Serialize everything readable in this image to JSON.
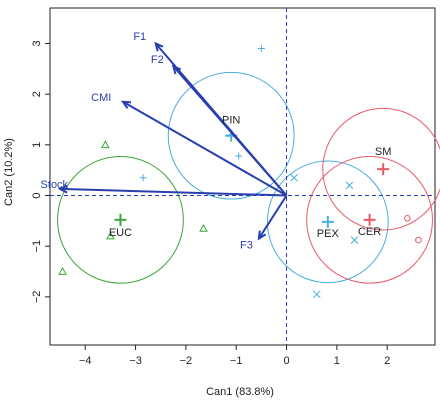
{
  "chart_data": {
    "type": "scatter",
    "title": "",
    "xlabel": "Can1 (83.8%)",
    "ylabel": "Can2 (10.2%)",
    "xlim": [
      -4.7,
      2.95
    ],
    "ylim": [
      -2.95,
      3.7
    ],
    "xticks": [
      -4,
      -3,
      -2,
      -1,
      0,
      1,
      2
    ],
    "yticks": [
      -2,
      -1,
      0,
      1,
      2,
      3
    ],
    "grid": false,
    "reference_lines": {
      "x": 0,
      "y": 0,
      "style": "dashed",
      "color": "#2a3faf"
    },
    "groups": [
      {
        "name": "EUC",
        "color": "#3aa63a",
        "marker": "triangle",
        "centroid": [
          -3.3,
          -0.48
        ],
        "radius": 1.25,
        "points": [
          [
            -3.6,
            1.0
          ],
          [
            -3.5,
            -0.8
          ],
          [
            -4.45,
            -1.5
          ],
          [
            -1.65,
            -0.65
          ]
        ]
      },
      {
        "name": "PIN",
        "color": "#4aaee0",
        "marker": "plus",
        "centroid": [
          -1.1,
          1.18
        ],
        "radius": 1.25,
        "points": [
          [
            -0.5,
            2.9
          ],
          [
            -0.95,
            0.78
          ],
          [
            -2.85,
            0.35
          ],
          [
            -1.1,
            1.2
          ]
        ]
      },
      {
        "name": "PEX",
        "color": "#4aaee0",
        "marker": "x",
        "centroid": [
          0.82,
          -0.52
        ],
        "radius": 1.2,
        "points": [
          [
            0.6,
            -1.95
          ],
          [
            1.35,
            -0.88
          ],
          [
            1.25,
            0.2
          ],
          [
            0.15,
            0.35
          ]
        ]
      },
      {
        "name": "CER",
        "color": "#e85a6a",
        "marker": "x",
        "centroid": [
          1.65,
          -0.48
        ],
        "radius": 1.25,
        "points": []
      },
      {
        "name": "SM",
        "color": "#e85a6a",
        "marker": "circle",
        "centroid": [
          1.92,
          0.52
        ],
        "radius": 1.2,
        "points": [
          [
            2.4,
            -0.45
          ],
          [
            2.62,
            -0.88
          ]
        ]
      }
    ],
    "vectors": [
      {
        "label": "F1",
        "end": [
          -2.6,
          3.0
        ]
      },
      {
        "label": "F2",
        "end": [
          -2.25,
          2.55
        ]
      },
      {
        "label": "CMI",
        "end": [
          -3.25,
          1.85
        ]
      },
      {
        "label": "Stock",
        "end": [
          -4.5,
          0.13
        ]
      },
      {
        "label": "F3",
        "end": [
          -0.55,
          -0.85
        ]
      }
    ],
    "vector_color": "#2a3faf"
  }
}
